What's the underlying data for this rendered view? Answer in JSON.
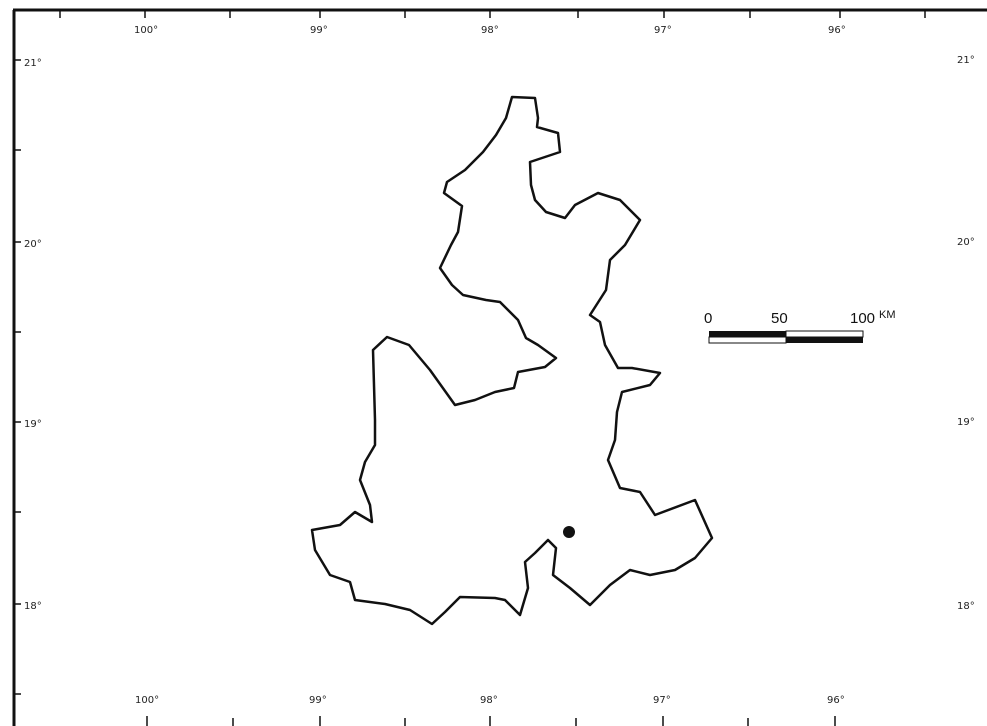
{
  "map": {
    "frame_color": "#111111",
    "outline_color": "#111111",
    "background": "#ffffff",
    "longitude_labels_top": [
      "100°",
      "99°",
      "98°",
      "97°",
      "96°"
    ],
    "longitude_labels_bottom": [
      "100°",
      "99°",
      "98°",
      "97°",
      "96°"
    ],
    "latitude_labels_left": [
      "21°",
      "20°",
      "19°",
      "18°"
    ],
    "latitude_labels_right": [
      "21°",
      "20°",
      "19°",
      "18°"
    ],
    "region_outline": "state-boundary",
    "location_marker": "filled-circle"
  },
  "scale_bar": {
    "labels": [
      "0",
      "50",
      "100"
    ],
    "unit": "KM"
  }
}
